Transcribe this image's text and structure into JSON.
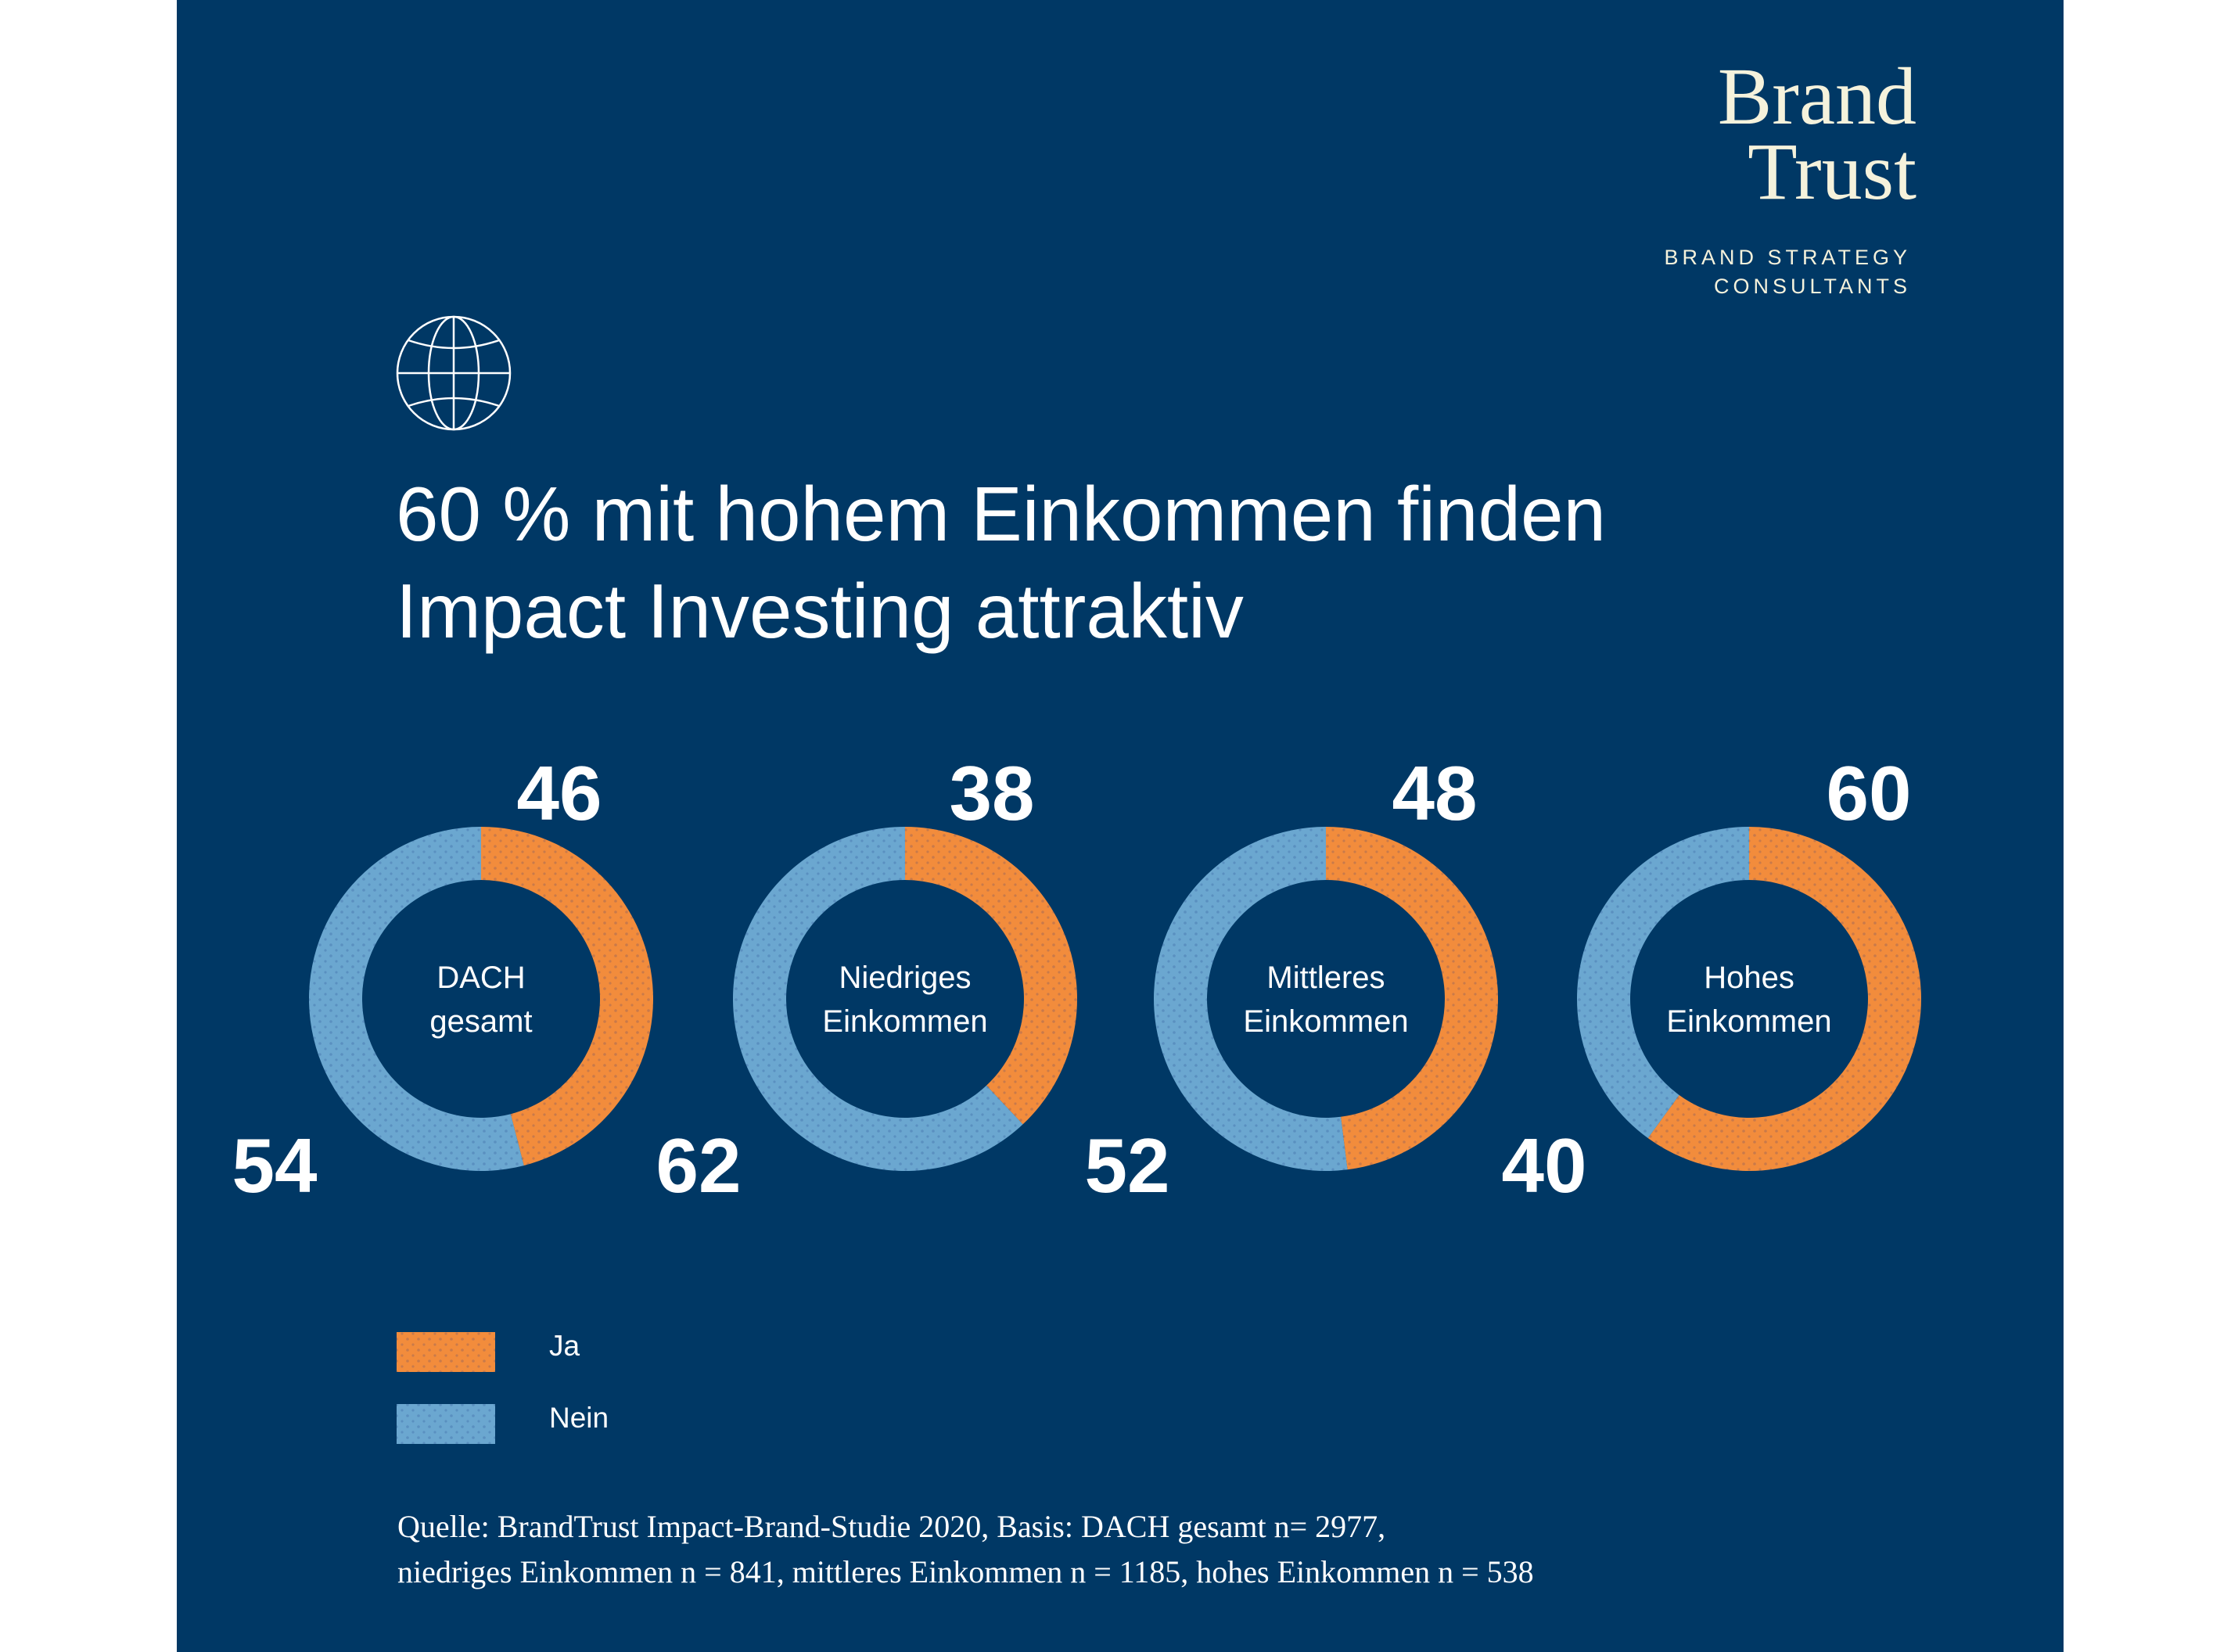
{
  "logo": {
    "line1": "Brand",
    "line2": "Trust",
    "tagline1": "BRAND STRATEGY",
    "tagline2": "CONSULTANTS"
  },
  "icon": "globe-icon",
  "title": {
    "line1": "60 % mit hohem Einkommen finden",
    "line2": "Impact Investing attraktiv"
  },
  "colors": {
    "background": "#003865",
    "ja": "#F28C3C",
    "nein": "#6BA7D0",
    "logo": "#F5F2DC"
  },
  "chart_data": {
    "type": "donut",
    "categories": [
      "DACH gesamt",
      "Niedriges Einkommen",
      "Mittleres Einkommen",
      "Hohes Einkommen"
    ],
    "center_labels": [
      [
        "DACH",
        "gesamt"
      ],
      [
        "Niedriges",
        "Einkommen"
      ],
      [
        "Mittleres",
        "Einkommen"
      ],
      [
        "Hohes",
        "Einkommen"
      ]
    ],
    "series": [
      {
        "name": "Ja",
        "values": [
          46,
          38,
          48,
          60
        ]
      },
      {
        "name": "Nein",
        "values": [
          54,
          62,
          52,
          40
        ]
      }
    ],
    "legend": {
      "placement": "bottom-left",
      "entries": [
        "Ja",
        "Nein"
      ]
    }
  },
  "source": {
    "line1": "Quelle: BrandTrust Impact-Brand-Studie 2020, Basis: DACH gesamt n= 2977,",
    "line2": "niedriges Einkommen n = 841, mittleres Einkommen n = 1185, hohes Einkommen n = 538"
  }
}
